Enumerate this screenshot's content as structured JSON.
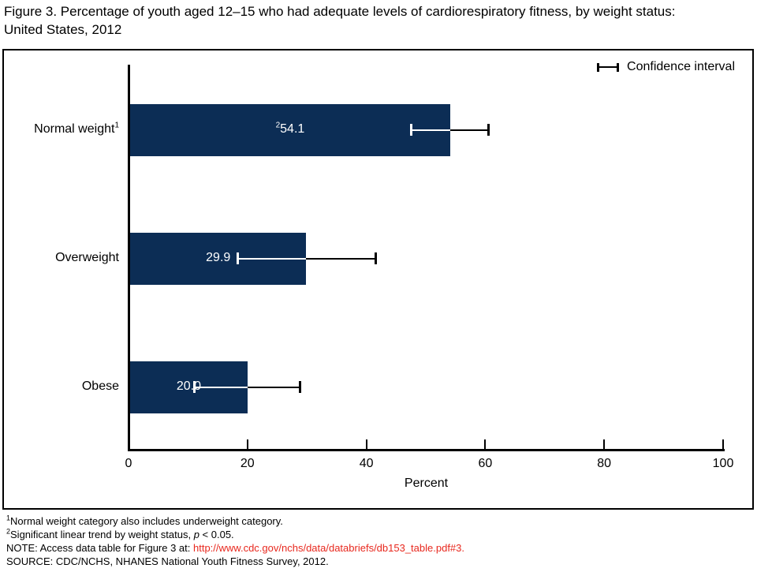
{
  "title": {
    "line1": "Figure 3. Percentage of youth aged 12–15 who had adequate levels of cardiorespiratory fitness, by weight status:",
    "line2": "United States, 2012"
  },
  "legend": {
    "label": "Confidence interval"
  },
  "chart_data": {
    "type": "bar",
    "orientation": "horizontal",
    "title": "Figure 3. Percentage of youth aged 12–15 who had adequate levels of cardiorespiratory fitness, by weight status: United States, 2012",
    "categories": [
      "Normal weight",
      "Overweight",
      "Obese"
    ],
    "category_footnote_markers": [
      "1",
      "",
      ""
    ],
    "values": [
      54.1,
      29.9,
      20.0
    ],
    "value_labels": [
      "54.1",
      "29.9",
      "20.0"
    ],
    "value_label_markers": [
      "2",
      "",
      ""
    ],
    "confidence_intervals": [
      [
        47.5,
        60.6
      ],
      [
        18.3,
        41.6
      ],
      [
        11.0,
        28.9
      ]
    ],
    "xlabel": "Percent",
    "x_ticks": [
      0,
      20,
      40,
      60,
      80,
      100
    ],
    "xlim": [
      0,
      100
    ],
    "grid": false,
    "legend_label": "Confidence interval",
    "legend_position": "top-right",
    "bar_color": "#0C2D55",
    "bar_label_color": "#ffffff",
    "ci_inside_color": "#ffffff",
    "ci_outside_color": "#000000"
  },
  "footnotes": {
    "f1_sup": "1",
    "f1_text": "Normal weight category also includes underweight category.",
    "f2_sup": "2",
    "f2_pre": "Significant linear trend by weight status, ",
    "f2_italic": "p",
    "f2_post": " < 0.05.",
    "note_prefix": "NOTE: Access data table for Figure 3 at: ",
    "note_link": "http://www.cdc.gov/nchs/data/databriefs/db153_table.pdf#3",
    "note_suffix": ".",
    "link_color": "#e8281e",
    "source": "SOURCE: CDC/NCHS, NHANES National Youth Fitness Survey, 2012."
  }
}
